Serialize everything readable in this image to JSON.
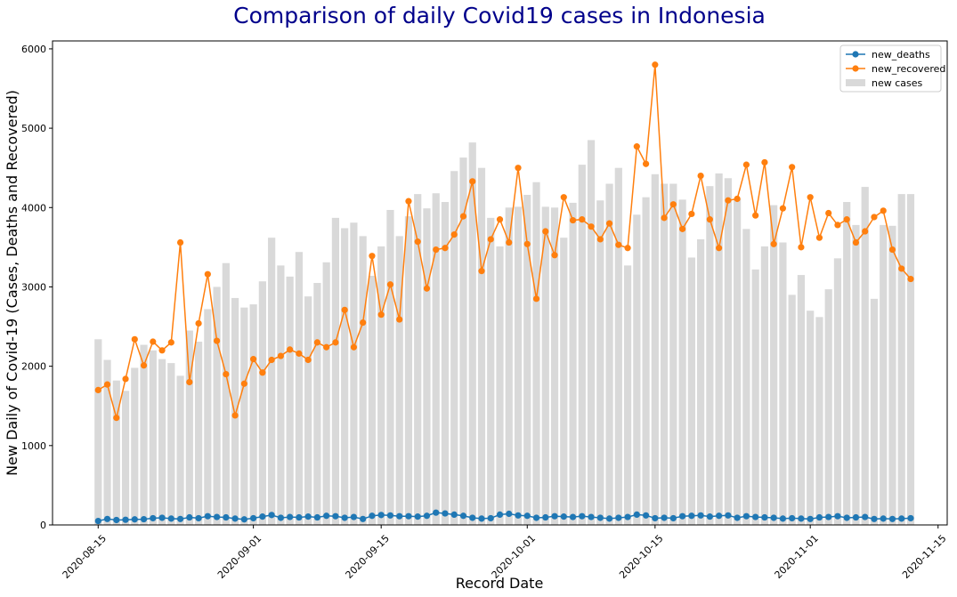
{
  "chart_data": {
    "type": "bar+line",
    "title": "Comparison of daily Covid19 cases in Indonesia",
    "xlabel": "Record Date",
    "ylabel": "New Daily of Covid-19 (Cases, Deaths and Recovered)",
    "ylim": [
      0,
      6100
    ],
    "yticks": [
      0,
      1000,
      2000,
      3000,
      4000,
      5000,
      6000
    ],
    "xlim": [
      "2020-08-10",
      "2020-11-16"
    ],
    "xticks": [
      "2020-08-15",
      "2020-09-01",
      "2020-09-15",
      "2020-10-01",
      "2020-10-15",
      "2020-11-01",
      "2020-11-15"
    ],
    "legend_position": "top-right",
    "grid": false,
    "x": [
      "2020-08-15",
      "2020-08-16",
      "2020-08-17",
      "2020-08-18",
      "2020-08-19",
      "2020-08-20",
      "2020-08-21",
      "2020-08-22",
      "2020-08-23",
      "2020-08-24",
      "2020-08-25",
      "2020-08-26",
      "2020-08-27",
      "2020-08-28",
      "2020-08-29",
      "2020-08-30",
      "2020-08-31",
      "2020-09-01",
      "2020-09-02",
      "2020-09-03",
      "2020-09-04",
      "2020-09-05",
      "2020-09-06",
      "2020-09-07",
      "2020-09-08",
      "2020-09-09",
      "2020-09-10",
      "2020-09-11",
      "2020-09-12",
      "2020-09-13",
      "2020-09-14",
      "2020-09-15",
      "2020-09-16",
      "2020-09-17",
      "2020-09-18",
      "2020-09-19",
      "2020-09-20",
      "2020-09-21",
      "2020-09-22",
      "2020-09-23",
      "2020-09-24",
      "2020-09-25",
      "2020-09-26",
      "2020-09-27",
      "2020-09-28",
      "2020-09-29",
      "2020-09-30",
      "2020-10-01",
      "2020-10-02",
      "2020-10-03",
      "2020-10-04",
      "2020-10-05",
      "2020-10-06",
      "2020-10-07",
      "2020-10-08",
      "2020-10-09",
      "2020-10-10",
      "2020-10-11",
      "2020-10-12",
      "2020-10-13",
      "2020-10-14",
      "2020-10-15",
      "2020-10-16",
      "2020-10-17",
      "2020-10-18",
      "2020-10-19",
      "2020-10-20",
      "2020-10-21",
      "2020-10-22",
      "2020-10-23",
      "2020-10-24",
      "2020-10-25",
      "2020-10-26",
      "2020-10-27",
      "2020-10-28",
      "2020-10-29",
      "2020-10-30",
      "2020-10-31",
      "2020-11-01",
      "2020-11-02",
      "2020-11-03",
      "2020-11-04",
      "2020-11-05",
      "2020-11-06",
      "2020-11-07",
      "2020-11-08",
      "2020-11-09",
      "2020-11-10",
      "2020-11-11",
      "2020-11-12"
    ],
    "series": [
      {
        "name": "new_deaths",
        "type": "line",
        "color": "#1f77b4",
        "values": [
          50,
          75,
          62,
          65,
          70,
          72,
          85,
          90,
          80,
          75,
          95,
          85,
          110,
          100,
          95,
          80,
          70,
          85,
          105,
          125,
          90,
          100,
          95,
          105,
          95,
          115,
          110,
          90,
          100,
          75,
          115,
          125,
          120,
          110,
          110,
          105,
          115,
          155,
          145,
          130,
          115,
          90,
          80,
          85,
          130,
          140,
          120,
          115,
          90,
          95,
          110,
          105,
          100,
          110,
          100,
          90,
          80,
          90,
          100,
          130,
          120,
          85,
          90,
          85,
          110,
          115,
          120,
          105,
          115,
          120,
          90,
          110,
          100,
          95,
          90,
          80,
          85,
          80,
          75,
          95,
          100,
          110,
          90,
          95,
          100,
          75,
          80,
          75,
          80,
          85
        ]
      },
      {
        "name": "new_recovered",
        "type": "line",
        "color": "#ff7f0e",
        "values": [
          1700,
          1770,
          1350,
          1840,
          2340,
          2010,
          2310,
          2200,
          2300,
          3560,
          1800,
          2540,
          3160,
          2320,
          1900,
          1380,
          1780,
          2090,
          1920,
          2080,
          2130,
          2210,
          2160,
          2080,
          2300,
          2240,
          2300,
          2710,
          2240,
          2550,
          3390,
          2650,
          3030,
          2590,
          4080,
          3570,
          2980,
          3470,
          3490,
          3660,
          3890,
          4330,
          3200,
          3600,
          3850,
          3560,
          4500,
          3540,
          2850,
          3700,
          3400,
          4130,
          3840,
          3850,
          3760,
          3600,
          3800,
          3530,
          3490,
          4770,
          4550,
          5800,
          3870,
          4040,
          3730,
          3920,
          4400,
          3850,
          3490,
          4090,
          4110,
          4540,
          3900,
          4570,
          3540,
          3990,
          4510,
          3500,
          4130,
          3620,
          3930,
          3780,
          3850,
          3560,
          3700,
          3880,
          3960,
          3470,
          3230,
          3100
        ]
      },
      {
        "name": "new cases",
        "type": "bar",
        "color": "#d9d9d9",
        "values": [
          2340,
          2080,
          1820,
          1690,
          1980,
          2270,
          2200,
          2090,
          2040,
          1880,
          2450,
          2310,
          2720,
          3000,
          3300,
          2860,
          2740,
          2780,
          3070,
          3620,
          3270,
          3130,
          3440,
          2880,
          3050,
          3310,
          3870,
          3740,
          3810,
          3640,
          3140,
          3510,
          3970,
          3640,
          3890,
          4170,
          3990,
          4180,
          4070,
          4460,
          4630,
          4820,
          4500,
          3870,
          3510,
          4000,
          4010,
          4160,
          4320,
          4010,
          4000,
          3620,
          4060,
          4540,
          4850,
          4090,
          4300,
          4500,
          3270,
          3910,
          4130,
          4420,
          4300,
          4300,
          4100,
          3370,
          3600,
          4270,
          4430,
          4370,
          4110,
          3730,
          3220,
          3510,
          4030,
          3560,
          2900,
          3150,
          2700,
          2620,
          2970,
          3360,
          4070,
          3780,
          4260,
          2850,
          3780,
          3770,
          4170,
          4170
        ]
      }
    ]
  }
}
